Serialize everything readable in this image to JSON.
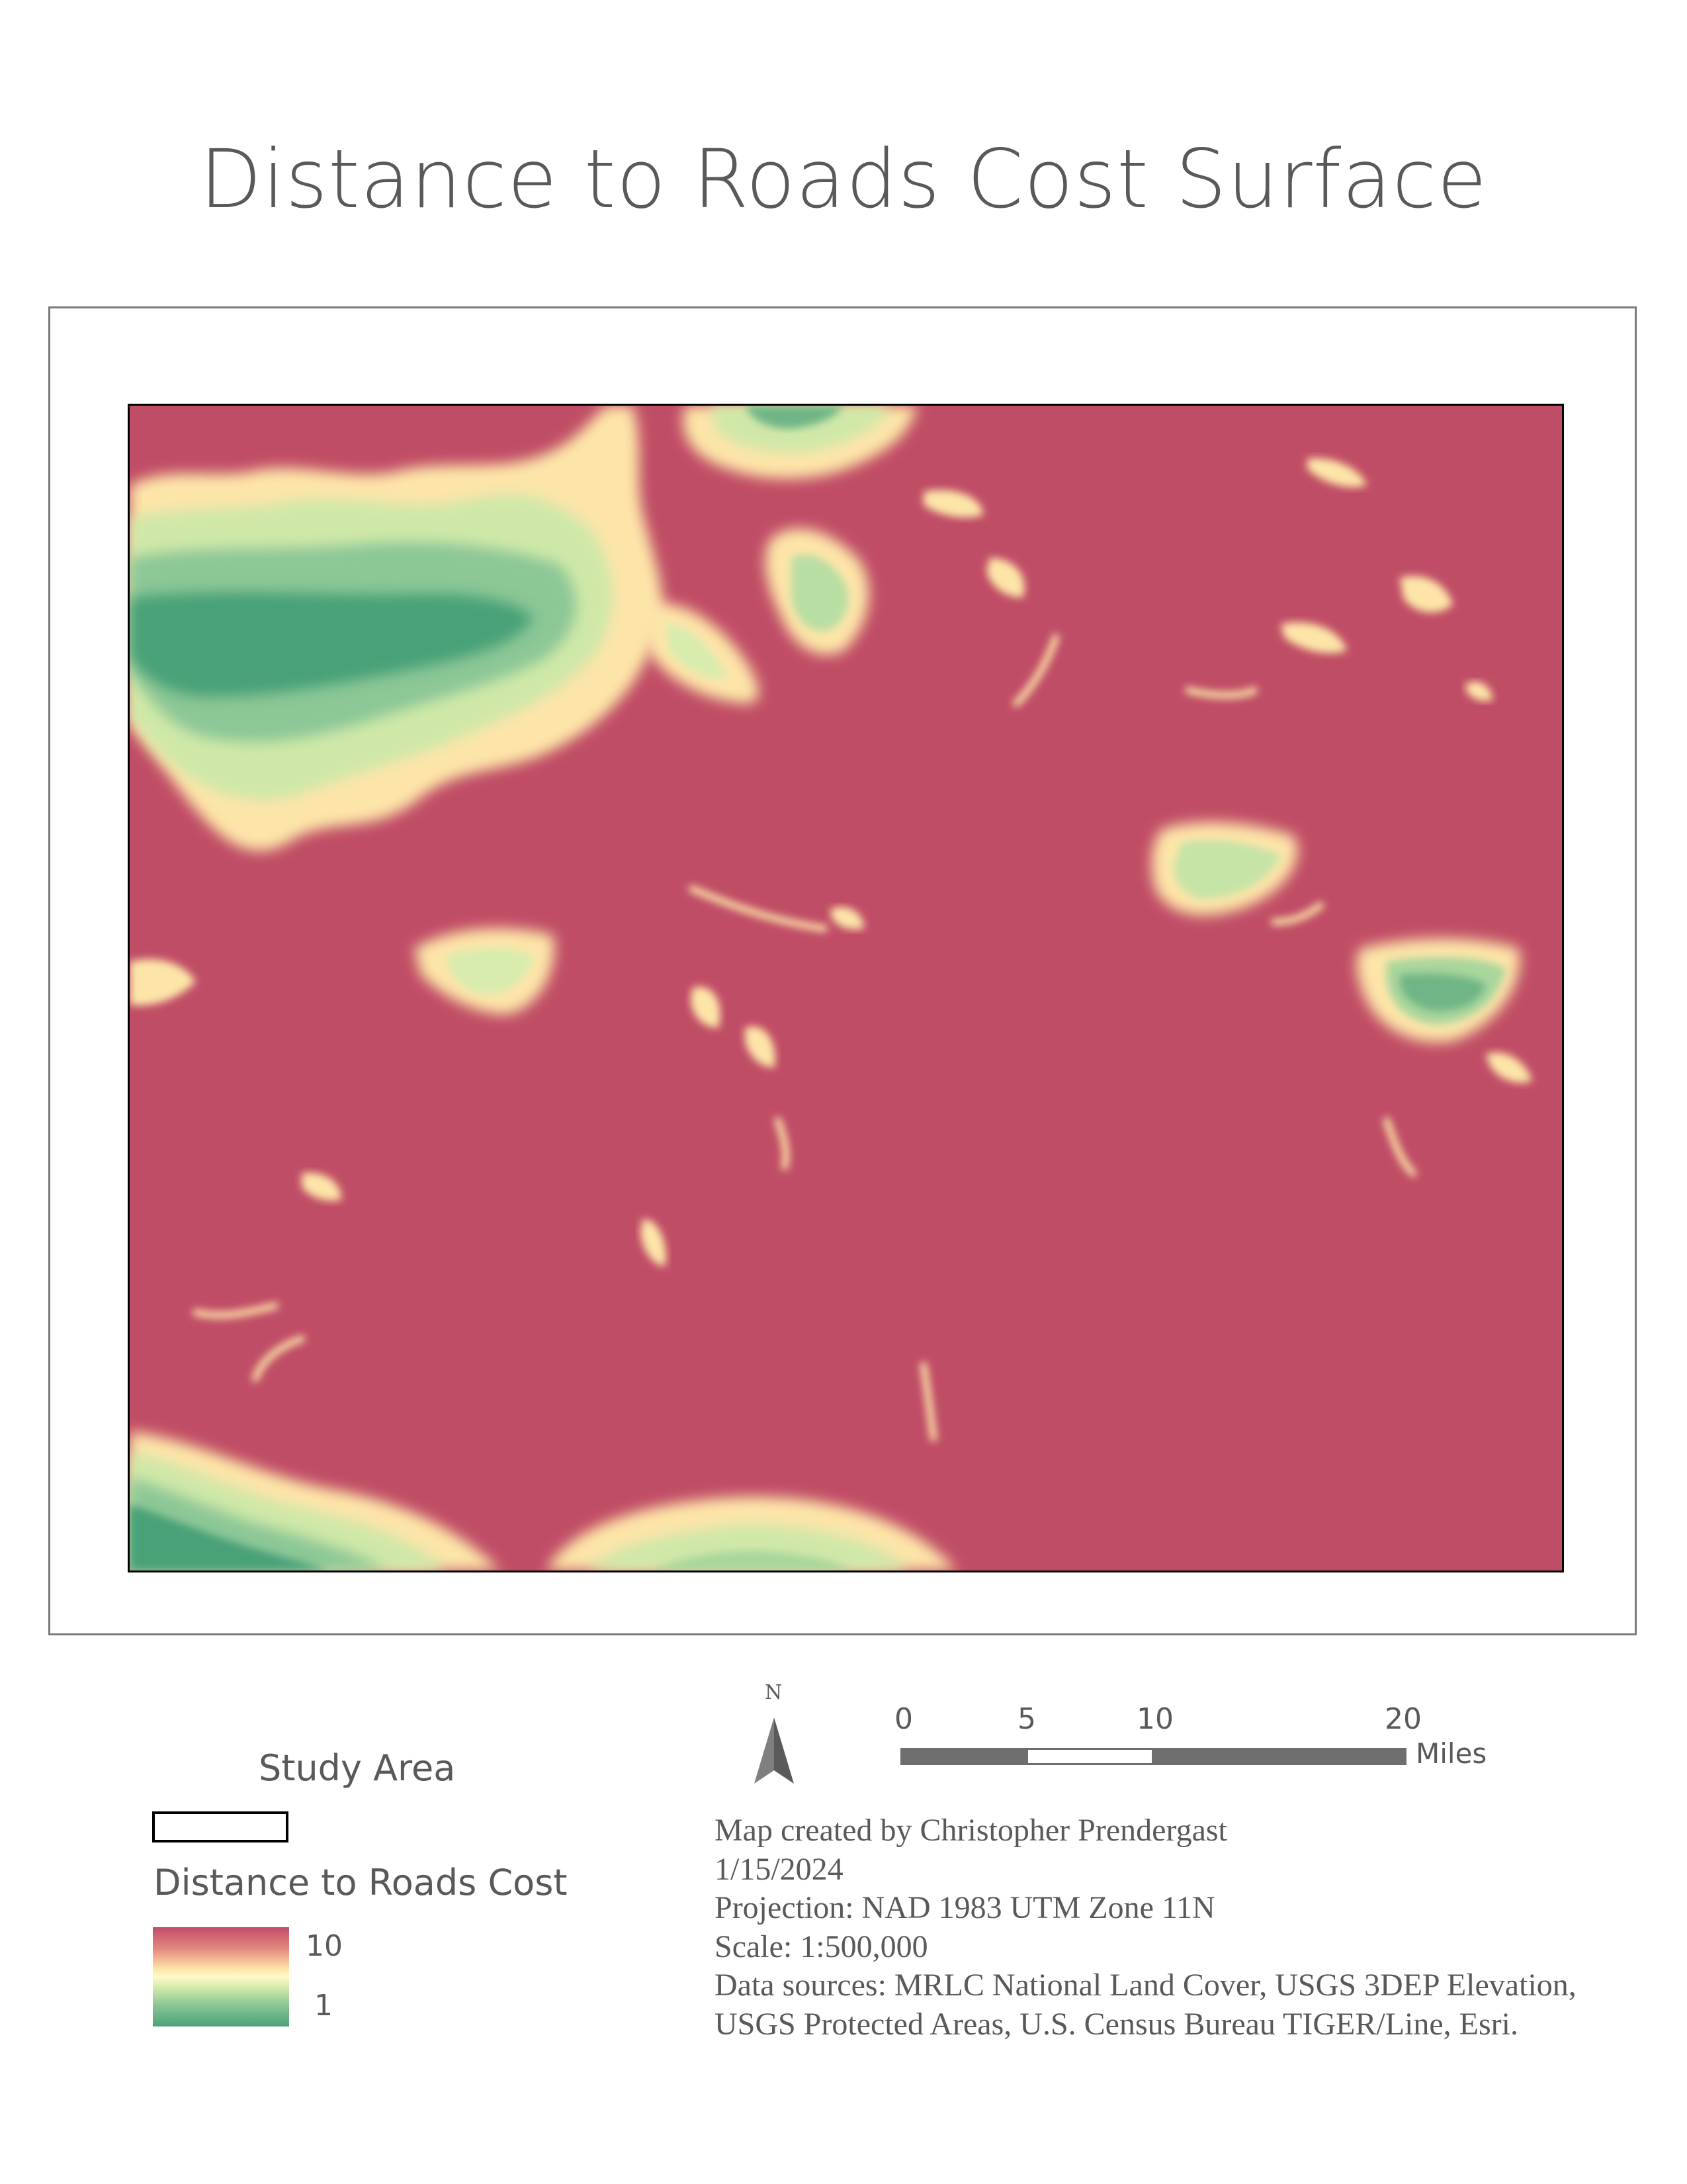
{
  "title": "Distance to Roads Cost Surface",
  "legend": {
    "study_area_label": "Study Area",
    "cost_label": "Distance to Roads Cost",
    "high_value": "10",
    "low_value": "1",
    "ramp_colors": {
      "high": "#c04d66",
      "mid": "#fefbc8",
      "low": "#4aa178"
    }
  },
  "north_arrow": {
    "label": "N"
  },
  "scale_bar": {
    "ticks": [
      "0",
      "5",
      "10",
      "20"
    ],
    "units": "Miles"
  },
  "metadata": {
    "lines": [
      "Map created by Christopher Prendergast",
      "1/15/2024",
      "Projection: NAD 1983 UTM Zone 11N",
      "Scale: 1:500,000",
      "Data sources: MRLC National Land Cover, USGS 3DEP Elevation,",
      "USGS Protected Areas, U.S. Census Bureau TIGER/Line, Esri."
    ]
  },
  "map": {
    "colors": {
      "far": "#c04d66",
      "near_edge": "#fde5a8",
      "mid": "#fefbc8",
      "near": "#4aa178"
    }
  }
}
